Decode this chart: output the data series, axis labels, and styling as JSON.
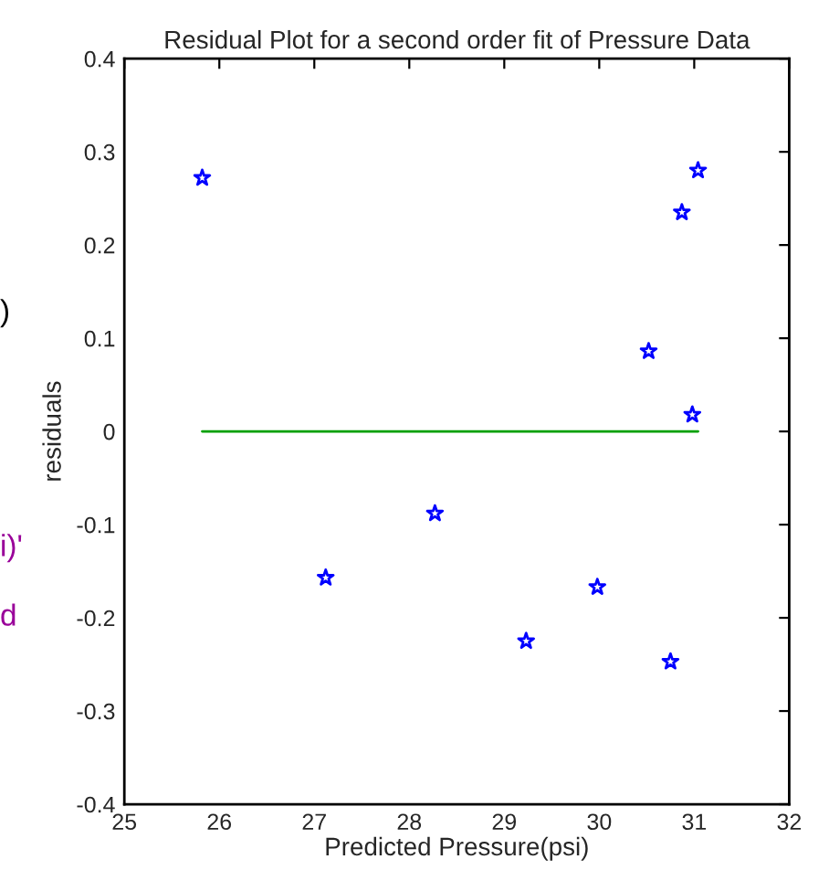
{
  "chart_data": {
    "type": "scatter",
    "title": "Residual Plot for a second order fit of Pressure Data",
    "xlabel": "Predicted Pressure(psi)",
    "ylabel": "residuals",
    "annotations": [
      ")",
      "i)'",
      "d"
    ],
    "series": [
      {
        "color": "#0000ff",
        "marker": "star",
        "x": [
          25.82,
          27.12,
          28.27,
          29.23,
          29.98,
          30.52,
          30.75,
          30.87,
          30.98,
          31.04
        ],
        "values": [
          0.272,
          -0.157,
          -0.088,
          -0.225,
          -0.167,
          0.086,
          -0.247,
          0.235,
          0.018,
          0.28
        ]
      },
      {
        "type": "line",
        "color": "#00a000",
        "marker": "none",
        "x": [
          25.82,
          31.04
        ],
        "values": [
          0,
          0
        ]
      }
    ],
    "xlim": [
      25,
      32
    ],
    "xticks": [
      25,
      26,
      27,
      28,
      29,
      30,
      31,
      32
    ],
    "ylim": [
      -0.4,
      0.4
    ],
    "yticks": [
      -0.4,
      -0.3,
      -0.2,
      -0.1,
      0,
      0.1,
      0.2,
      0.3,
      0.4
    ],
    "grid": false,
    "legend": false
  }
}
